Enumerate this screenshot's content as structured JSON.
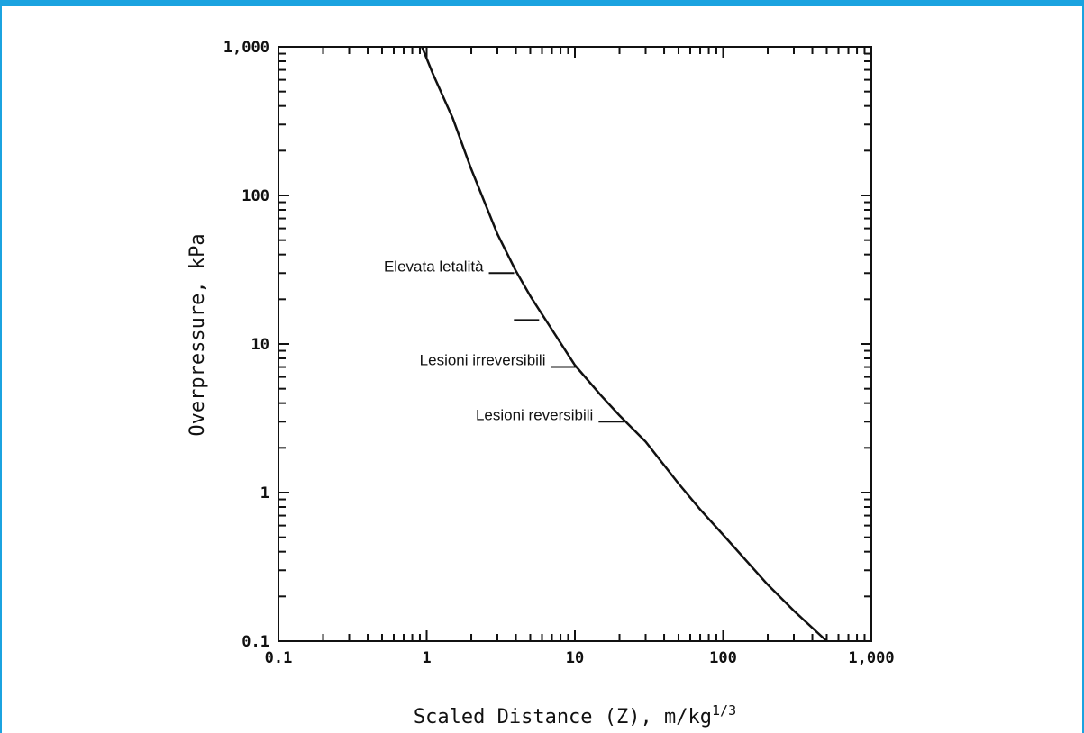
{
  "colors": {
    "frame": "#1ba3e0",
    "ink": "#111111",
    "background": "#ffffff"
  },
  "chart_data": {
    "type": "line",
    "xscale": "log",
    "yscale": "log",
    "xlim": [
      0.1,
      1000
    ],
    "ylim": [
      0.1,
      1000
    ],
    "grid": false,
    "xlabel": "Scaled Distance (Z), m/kg",
    "xlabel_superscript": "1/3",
    "ylabel": "Overpressure, kPa",
    "xticks": [
      {
        "value": 0.1,
        "label": "0.1"
      },
      {
        "value": 1,
        "label": "1"
      },
      {
        "value": 10,
        "label": "10"
      },
      {
        "value": 100,
        "label": "100"
      },
      {
        "value": 1000,
        "label": "1,000"
      }
    ],
    "yticks": [
      {
        "value": 0.1,
        "label": "0.1"
      },
      {
        "value": 1,
        "label": "1"
      },
      {
        "value": 10,
        "label": "10"
      },
      {
        "value": 100,
        "label": "100"
      },
      {
        "value": 1000,
        "label": "1,000"
      }
    ],
    "series": [
      {
        "x": [
          0.93,
          1.1,
          1.5,
          2.0,
          3.0,
          4.0,
          5.0,
          7.0,
          10,
          15,
          20,
          30,
          50,
          70,
          100,
          200,
          300,
          500
        ],
        "y": [
          1000,
          660,
          330,
          150,
          55,
          31,
          21,
          12.5,
          7.2,
          4.5,
          3.3,
          2.2,
          1.15,
          0.77,
          0.52,
          0.24,
          0.16,
          0.1
        ]
      }
    ],
    "annotations": [
      {
        "text": "Elevata letalità",
        "x": 4.0,
        "y": 30
      },
      {
        "text": "",
        "x": 5.9,
        "y": 14.5
      },
      {
        "text": "Lesioni irreversibili",
        "x": 10.5,
        "y": 7
      },
      {
        "text": "Lesioni reversibili",
        "x": 22.0,
        "y": 3
      }
    ]
  }
}
